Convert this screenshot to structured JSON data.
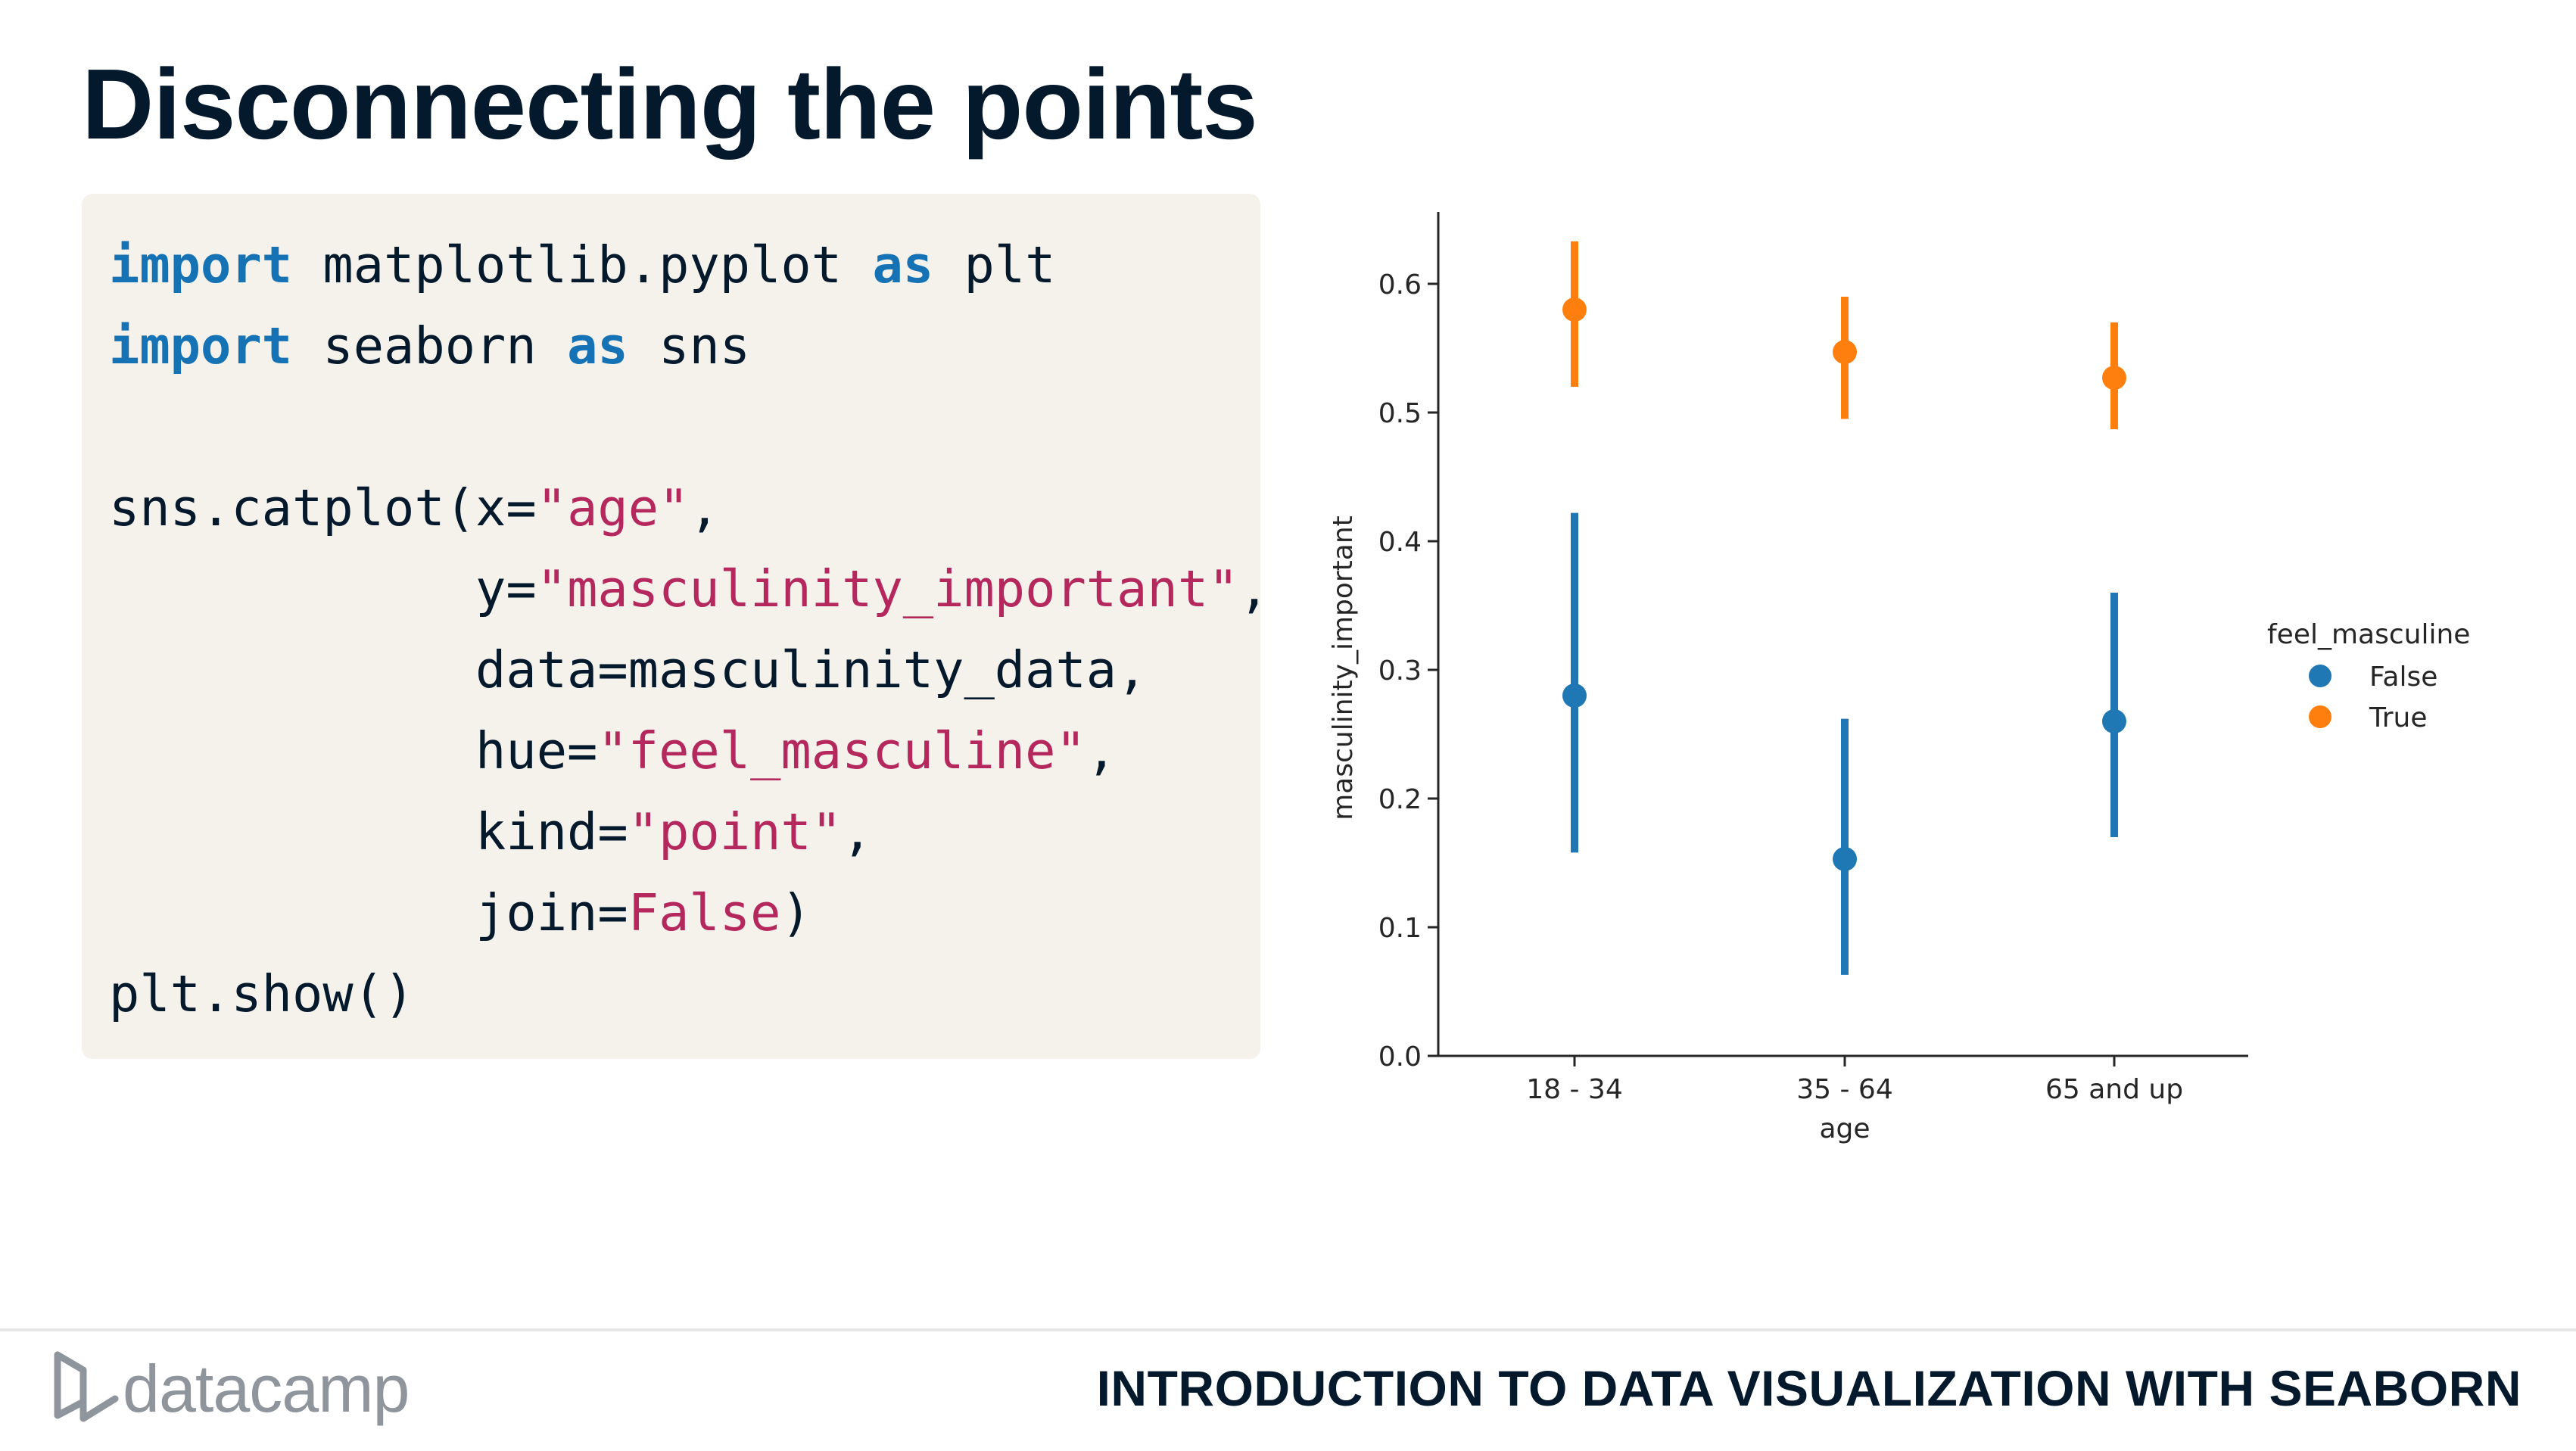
{
  "slide": {
    "title": "Disconnecting the points"
  },
  "code": {
    "lines": [
      [
        {
          "t": "import",
          "c": "kw"
        },
        {
          "t": " matplotlib.pyplot "
        },
        {
          "t": "as",
          "c": "kw"
        },
        {
          "t": " plt"
        }
      ],
      [
        {
          "t": "import",
          "c": "kw"
        },
        {
          "t": " seaborn "
        },
        {
          "t": "as",
          "c": "kw"
        },
        {
          "t": " sns"
        }
      ],
      [],
      [
        {
          "t": "sns.catplot(x="
        },
        {
          "t": "\"age\"",
          "c": "str"
        },
        {
          "t": ","
        }
      ],
      [
        {
          "t": "            y="
        },
        {
          "t": "\"masculinity_important\"",
          "c": "str"
        },
        {
          "t": ","
        }
      ],
      [
        {
          "t": "            data=masculinity_data,"
        }
      ],
      [
        {
          "t": "            hue="
        },
        {
          "t": "\"feel_masculine\"",
          "c": "str"
        },
        {
          "t": ","
        }
      ],
      [
        {
          "t": "            kind="
        },
        {
          "t": "\"point\"",
          "c": "str"
        },
        {
          "t": ","
        }
      ],
      [
        {
          "t": "            join="
        },
        {
          "t": "False",
          "c": "str"
        },
        {
          "t": ")"
        }
      ],
      [
        {
          "t": "plt.show()"
        }
      ]
    ]
  },
  "chart_data": {
    "type": "scatter",
    "title": "",
    "xlabel": "age",
    "ylabel": "masculinity_important",
    "categories": [
      "18 - 34",
      "35 - 64",
      "65 and up"
    ],
    "ylim": [
      0.0,
      0.65
    ],
    "yticks": [
      0.0,
      0.1,
      0.2,
      0.3,
      0.4,
      0.5,
      0.6
    ],
    "ytick_labels": [
      "0.0",
      "0.1",
      "0.2",
      "0.3",
      "0.4",
      "0.5",
      "0.6"
    ],
    "grid": false,
    "legend": {
      "title": "feel_masculine",
      "placement": "right"
    },
    "series": [
      {
        "name": "False",
        "color": "#1f77b4",
        "values": [
          0.28,
          0.153,
          0.26
        ],
        "ci_low": [
          0.158,
          0.063,
          0.17
        ],
        "ci_high": [
          0.422,
          0.262,
          0.36
        ]
      },
      {
        "name": "True",
        "color": "#ff7f0e",
        "values": [
          0.58,
          0.547,
          0.527
        ],
        "ci_low": [
          0.52,
          0.495,
          0.487
        ],
        "ci_high": [
          0.633,
          0.59,
          0.57
        ]
      }
    ]
  },
  "footer": {
    "logo_text": "datacamp",
    "course_title": "INTRODUCTION TO DATA VISUALIZATION WITH SEABORN"
  }
}
